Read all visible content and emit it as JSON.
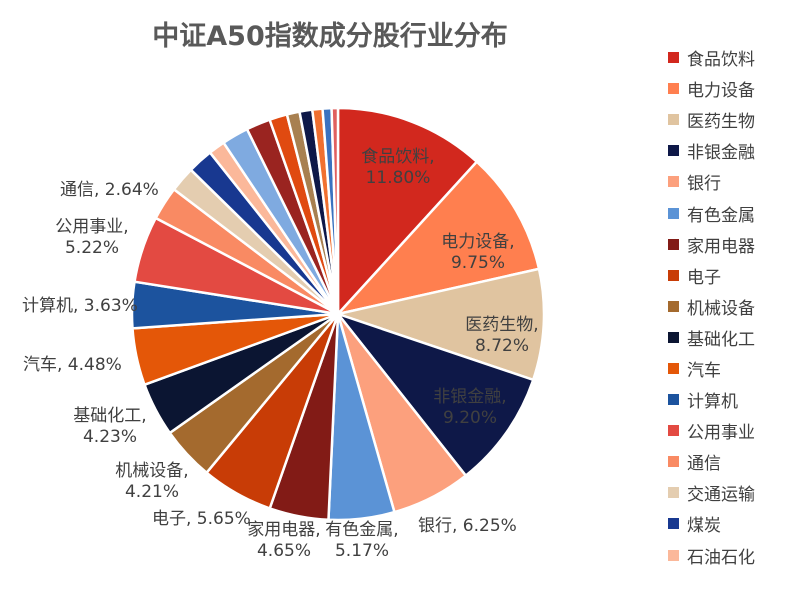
{
  "chart_data": {
    "type": "pie",
    "title": "中证A50指数成分股行业分布",
    "legend_position": "right",
    "slices": [
      {
        "name": "食品饮料",
        "value": 11.8,
        "label": "11.80%",
        "color": "#D2281E"
      },
      {
        "name": "电力设备",
        "value": 9.75,
        "label": "9.75%",
        "color": "#FF7F4F"
      },
      {
        "name": "医药生物",
        "value": 8.72,
        "label": "8.72%",
        "color": "#E0C4A0"
      },
      {
        "name": "非银金融",
        "value": 9.2,
        "label": "9.20%",
        "color": "#0E1848"
      },
      {
        "name": "银行",
        "value": 6.25,
        "label": "6.25%",
        "color": "#FCA07D"
      },
      {
        "name": "有色金属",
        "value": 5.17,
        "label": "5.17%",
        "color": "#5B93D6"
      },
      {
        "name": "家用电器",
        "value": 4.65,
        "label": "4.65%",
        "color": "#821B16"
      },
      {
        "name": "电子",
        "value": 5.65,
        "label": "5.65%",
        "color": "#C83C06"
      },
      {
        "name": "机械设备",
        "value": 4.21,
        "label": "4.21%",
        "color": "#A46A2E"
      },
      {
        "name": "基础化工",
        "value": 4.23,
        "label": "4.23%",
        "color": "#0B1532"
      },
      {
        "name": "汽车",
        "value": 4.48,
        "label": "4.48%",
        "color": "#E45708"
      },
      {
        "name": "计算机",
        "value": 3.63,
        "label": "3.63%",
        "color": "#1C539E"
      },
      {
        "name": "公用事业",
        "value": 5.22,
        "label": "5.22%",
        "color": "#E34A42"
      },
      {
        "name": "通信",
        "value": 2.64,
        "label": "2.64%",
        "color": "#F98A63"
      },
      {
        "name": "交通运输",
        "value": 2.0,
        "label": "",
        "color": "#E4CDB0"
      },
      {
        "name": "煤炭",
        "value": 2.0,
        "label": "",
        "color": "#183890"
      },
      {
        "name": "石油石化",
        "value": 1.3,
        "label": "",
        "color": "#FBB89A"
      },
      {
        "name": "",
        "value": 2.1,
        "label": "",
        "color": "#7FAAE0"
      },
      {
        "name": "",
        "value": 1.9,
        "label": "",
        "color": "#9A2420"
      },
      {
        "name": "",
        "value": 1.4,
        "label": "",
        "color": "#E04A10"
      },
      {
        "name": "",
        "value": 1.0,
        "label": "",
        "color": "#A88050"
      },
      {
        "name": "",
        "value": 1.0,
        "label": "",
        "color": "#0E1848"
      },
      {
        "name": "",
        "value": 0.8,
        "label": "",
        "color": "#F07030"
      },
      {
        "name": "",
        "value": 0.7,
        "label": "",
        "color": "#3A72C0"
      },
      {
        "name": "",
        "value": 0.5,
        "label": "",
        "color": "#E06060"
      }
    ]
  }
}
